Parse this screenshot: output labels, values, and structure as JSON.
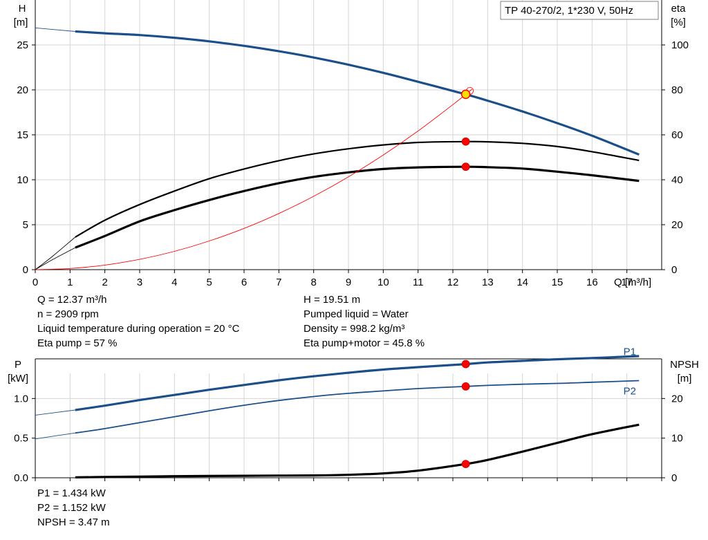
{
  "chart_data": [
    {
      "type": "line",
      "title": "TP 40-270/2, 1*230 V, 50Hz",
      "xlabel": "Q [m³/h]",
      "ylabel_left": [
        "H",
        "[m]"
      ],
      "ylabel_right": [
        "eta",
        "[%]"
      ],
      "xlim": [
        0,
        18
      ],
      "ylim_left": [
        0,
        30
      ],
      "ylim_right": [
        0,
        120
      ],
      "x_ticks": [
        "0",
        "1",
        "2",
        "3",
        "4",
        "5",
        "6",
        "7",
        "8",
        "9",
        "10",
        "11",
        "12",
        "13",
        "14",
        "15",
        "16",
        "17"
      ],
      "y_ticks_left": [
        "0",
        "5",
        "10",
        "15",
        "20",
        "25"
      ],
      "y_ticks_right": [
        "0",
        "20",
        "40",
        "60",
        "80",
        "100"
      ],
      "grid": true,
      "series": [
        {
          "name": "H",
          "axis": "left",
          "color": "#1a4f8a",
          "extrapolated": [
            [
              0,
              26.9
            ],
            [
              1.15,
              26.5
            ]
          ],
          "values": [
            [
              1.15,
              26.5
            ],
            [
              2,
              26.3
            ],
            [
              3,
              26.1
            ],
            [
              4,
              25.8
            ],
            [
              5,
              25.4
            ],
            [
              6,
              24.9
            ],
            [
              7,
              24.3
            ],
            [
              8,
              23.6
            ],
            [
              9,
              22.8
            ],
            [
              10,
              21.9
            ],
            [
              11,
              20.9
            ],
            [
              12.37,
              19.51
            ],
            [
              13,
              18.8
            ],
            [
              14,
              17.6
            ],
            [
              15,
              16.3
            ],
            [
              16,
              14.9
            ],
            [
              17.35,
              12.8
            ]
          ]
        },
        {
          "name": "Eta pump",
          "axis": "right",
          "color": "#000000",
          "extrapolated": [
            [
              0,
              0
            ],
            [
              0.5,
              6
            ],
            [
              1.15,
              14.5
            ]
          ],
          "values": [
            [
              1.15,
              14.5
            ],
            [
              2,
              22
            ],
            [
              3,
              29
            ],
            [
              4,
              35
            ],
            [
              5,
              40.5
            ],
            [
              6,
              44.8
            ],
            [
              7,
              48.5
            ],
            [
              8,
              51.5
            ],
            [
              9,
              53.8
            ],
            [
              10,
              55.5
            ],
            [
              11,
              56.6
            ],
            [
              12.37,
              57
            ],
            [
              13,
              56.9
            ],
            [
              14,
              56.2
            ],
            [
              15,
              54.8
            ],
            [
              16,
              52.5
            ],
            [
              17.35,
              48.6
            ]
          ]
        },
        {
          "name": "Eta pump+motor",
          "axis": "right",
          "color": "#000000",
          "extrapolated": [
            [
              0,
              0
            ],
            [
              0.5,
              4.5
            ],
            [
              1.15,
              9.8
            ]
          ],
          "values": [
            [
              1.15,
              9.8
            ],
            [
              2,
              15
            ],
            [
              3,
              21.5
            ],
            [
              4,
              26.5
            ],
            [
              5,
              31
            ],
            [
              6,
              35
            ],
            [
              7,
              38.5
            ],
            [
              8,
              41.3
            ],
            [
              9,
              43.3
            ],
            [
              10,
              44.8
            ],
            [
              11,
              45.5
            ],
            [
              12.37,
              45.8
            ],
            [
              13,
              45.6
            ],
            [
              14,
              45
            ],
            [
              15,
              43.6
            ],
            [
              16,
              42
            ],
            [
              17.35,
              39.5
            ]
          ]
        },
        {
          "name": "System curve",
          "axis": "left",
          "color": "#ff0000",
          "values": [
            [
              0,
              0
            ],
            [
              1,
              0.13
            ],
            [
              2,
              0.51
            ],
            [
              3,
              1.15
            ],
            [
              4,
              2.04
            ],
            [
              5,
              3.19
            ],
            [
              6,
              4.59
            ],
            [
              7,
              6.25
            ],
            [
              8,
              8.16
            ],
            [
              9,
              10.33
            ],
            [
              10,
              12.75
            ],
            [
              11,
              15.43
            ],
            [
              12,
              18.36
            ],
            [
              12.37,
              19.51
            ],
            [
              12.55,
              20.08
            ]
          ]
        }
      ],
      "duty_points": [
        {
          "series": "H",
          "x": 12.37,
          "y": 19.51,
          "color": "#ffe000"
        },
        {
          "series": "Eta pump",
          "x": 12.37,
          "y": 57,
          "color": "#ff0000"
        },
        {
          "series": "Eta pump+motor",
          "x": 12.37,
          "y": 45.8,
          "color": "#ff0000"
        }
      ]
    },
    {
      "type": "line",
      "ylabel_left": [
        "P",
        "[kW]"
      ],
      "ylabel_right": [
        "NPSH",
        "[m]"
      ],
      "xlim": [
        0,
        18
      ],
      "ylim_left": [
        0,
        1.5
      ],
      "ylim_right": [
        0,
        30
      ],
      "y_ticks_left": [
        "0.0",
        "0.5",
        "1.0"
      ],
      "y_ticks_right": [
        "0",
        "10",
        "20"
      ],
      "grid": true,
      "series": [
        {
          "name": "P1",
          "axis": "left",
          "color": "#1a4f8a",
          "extrapolated": [
            [
              0,
              0.79
            ],
            [
              1.15,
              0.855
            ]
          ],
          "values": [
            [
              1.15,
              0.855
            ],
            [
              2,
              0.91
            ],
            [
              3,
              0.98
            ],
            [
              4,
              1.045
            ],
            [
              5,
              1.11
            ],
            [
              6,
              1.17
            ],
            [
              7,
              1.23
            ],
            [
              8,
              1.28
            ],
            [
              9,
              1.325
            ],
            [
              10,
              1.365
            ],
            [
              11,
              1.395
            ],
            [
              12.37,
              1.434
            ],
            [
              13,
              1.455
            ],
            [
              14,
              1.475
            ],
            [
              15,
              1.495
            ],
            [
              16,
              1.51
            ],
            [
              17.35,
              1.535
            ]
          ]
        },
        {
          "name": "P2",
          "axis": "left",
          "color": "#1a4f8a",
          "extrapolated": [
            [
              0,
              0.49
            ],
            [
              1.15,
              0.565
            ]
          ],
          "values": [
            [
              1.15,
              0.565
            ],
            [
              2,
              0.62
            ],
            [
              3,
              0.695
            ],
            [
              4,
              0.77
            ],
            [
              5,
              0.845
            ],
            [
              6,
              0.915
            ],
            [
              7,
              0.975
            ],
            [
              8,
              1.025
            ],
            [
              9,
              1.065
            ],
            [
              10,
              1.095
            ],
            [
              11,
              1.125
            ],
            [
              12.37,
              1.152
            ],
            [
              13,
              1.165
            ],
            [
              14,
              1.18
            ],
            [
              15,
              1.19
            ],
            [
              16,
              1.205
            ],
            [
              17.35,
              1.225
            ]
          ]
        },
        {
          "name": "NPSH",
          "axis": "right",
          "color": "#000000",
          "values": [
            [
              1.15,
              0.1
            ],
            [
              2,
              0.2
            ],
            [
              3,
              0.3
            ],
            [
              4,
              0.4
            ],
            [
              5,
              0.45
            ],
            [
              6,
              0.5
            ],
            [
              7,
              0.55
            ],
            [
              8,
              0.6
            ],
            [
              9,
              0.75
            ],
            [
              10,
              1.1
            ],
            [
              11,
              1.8
            ],
            [
              12.37,
              3.47
            ],
            [
              13,
              4.5
            ],
            [
              14,
              6.6
            ],
            [
              15,
              8.8
            ],
            [
              16,
              11
            ],
            [
              17.35,
              13.4
            ]
          ]
        }
      ],
      "series_labels": [
        {
          "text": "P1",
          "x": 16.9,
          "y": 1.55
        },
        {
          "text": "P2",
          "x": 16.9,
          "y": 1.05
        }
      ],
      "duty_points": [
        {
          "series": "P1",
          "x": 12.37,
          "y": 1.434,
          "color": "#ff0000"
        },
        {
          "series": "P2",
          "x": 12.37,
          "y": 1.152,
          "color": "#ff0000"
        },
        {
          "series": "NPSH",
          "x": 12.37,
          "y": 3.47,
          "color": "#ff0000"
        }
      ]
    }
  ],
  "info": {
    "left": [
      "Q = 12.37 m³/h",
      "n = 2909 rpm",
      "Liquid temperature during operation = 20 °C",
      "Eta pump = 57 %"
    ],
    "right": [
      "H = 19.51 m",
      "Pumped liquid = Water",
      "Density = 998.2 kg/m³",
      "Eta pump+motor = 45.8 %"
    ],
    "bottom": [
      "P1 = 1.434 kW",
      "P2 = 1.152 kW",
      "NPSH = 3.47 m"
    ]
  }
}
